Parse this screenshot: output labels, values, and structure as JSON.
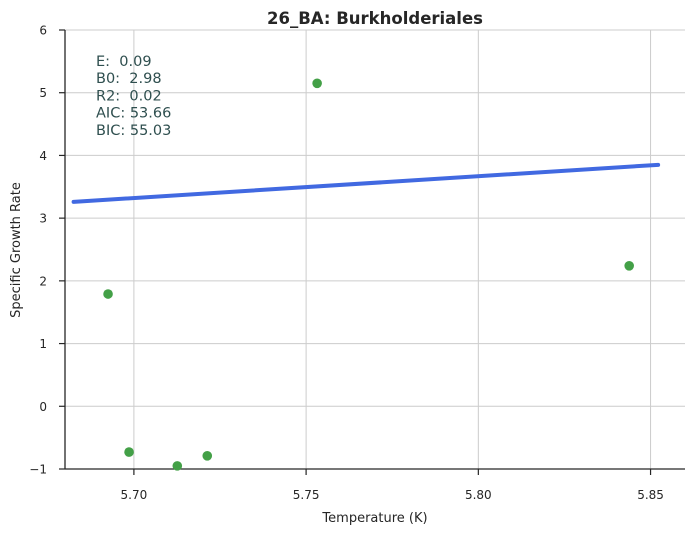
{
  "chart_data": {
    "type": "scatter",
    "title": "26_BA: Burkholderiales",
    "xlabel": "Temperature (K)",
    "ylabel": "Specific Growth Rate",
    "xlim": [
      5.68,
      5.86
    ],
    "ylim": [
      -1,
      6
    ],
    "x_ticks": [
      5.7,
      5.75,
      5.8,
      5.85
    ],
    "x_tick_labels": [
      "5.70",
      "5.75",
      "5.80",
      "5.85"
    ],
    "y_ticks": [
      -1,
      0,
      1,
      2,
      3,
      4,
      5,
      6
    ],
    "y_tick_labels": [
      "−1",
      "0",
      "1",
      "2",
      "3",
      "4",
      "5",
      "6"
    ],
    "grid": true,
    "points": [
      {
        "x": 5.6925,
        "y": 1.79
      },
      {
        "x": 5.6986,
        "y": -0.73
      },
      {
        "x": 5.7126,
        "y": -0.95
      },
      {
        "x": 5.7213,
        "y": -0.79
      },
      {
        "x": 5.7532,
        "y": 5.15
      },
      {
        "x": 5.8438,
        "y": 2.24
      }
    ],
    "fit_line": {
      "x": [
        5.6825,
        5.8522
      ],
      "y": [
        3.26,
        3.85
      ]
    },
    "annotation": [
      "E:  0.09",
      "B0:  2.98",
      "R2:  0.02",
      "AIC: 53.66",
      "BIC: 55.03"
    ],
    "colors": {
      "points": "#43a047",
      "fit_line": "#4169e1",
      "grid": "#cccccc",
      "axis": "#262626",
      "annotation": "#2f4f4f"
    }
  }
}
